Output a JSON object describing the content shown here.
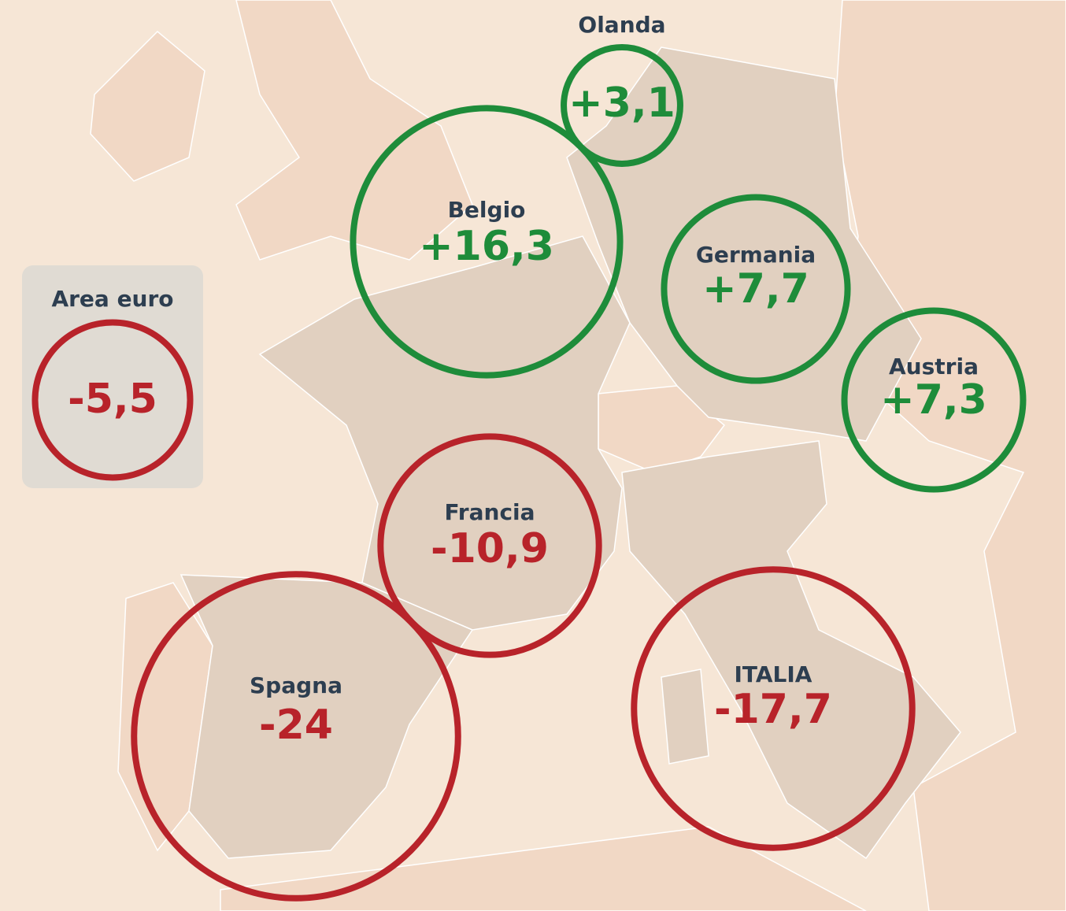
{
  "regions": [
    {
      "name": "Area euro",
      "value": -5.5,
      "value_label": "-5,5",
      "color": "#b8232a"
    },
    {
      "name": "Olanda",
      "value": 3.1,
      "value_label": "+3,1",
      "color": "#1e8c3a"
    },
    {
      "name": "Belgio",
      "value": 16.3,
      "value_label": "+16,3",
      "color": "#1e8c3a"
    },
    {
      "name": "Germania",
      "value": 7.7,
      "value_label": "+7,7",
      "color": "#1e8c3a"
    },
    {
      "name": "Austria",
      "value": 7.3,
      "value_label": "+7,3",
      "color": "#1e8c3a"
    },
    {
      "name": "Francia",
      "value": -10.9,
      "value_label": "-10,9",
      "color": "#b8232a"
    },
    {
      "name": "Spagna",
      "value": -24,
      "value_label": "-24",
      "color": "#b8232a"
    },
    {
      "name": "ITALIA",
      "value": -17.7,
      "value_label": "-17,7",
      "color": "#b8232a"
    }
  ]
}
